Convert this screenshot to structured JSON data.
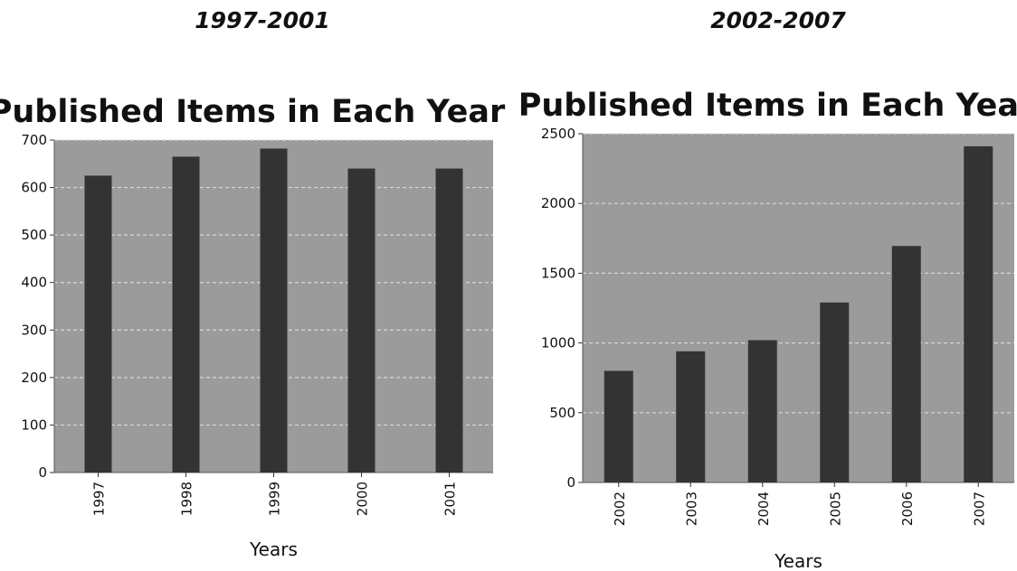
{
  "periods": [
    "1997-2001",
    "2002-2007"
  ],
  "chart_data": [
    {
      "type": "bar",
      "title": "Published Items in Each Year",
      "xlabel": "Years",
      "ylabel": "",
      "categories": [
        "1997",
        "1998",
        "1999",
        "2000",
        "2001"
      ],
      "values": [
        625,
        665,
        682,
        640,
        640
      ],
      "ylim": [
        0,
        700
      ],
      "yticks": [
        0,
        100,
        200,
        300,
        400,
        500,
        600,
        700
      ],
      "grid": true,
      "bar_color": "#333333",
      "plot_background": "#9b9b9b"
    },
    {
      "type": "bar",
      "title": "Published Items in Each Year",
      "xlabel": "Years",
      "ylabel": "",
      "categories": [
        "2002",
        "2003",
        "2004",
        "2005",
        "2006",
        "2007"
      ],
      "values": [
        800,
        940,
        1020,
        1290,
        1695,
        2410
      ],
      "ylim": [
        0,
        2500
      ],
      "yticks": [
        0,
        500,
        1000,
        1500,
        2000,
        2500
      ],
      "grid": true,
      "bar_color": "#333333",
      "plot_background": "#9b9b9b"
    }
  ]
}
